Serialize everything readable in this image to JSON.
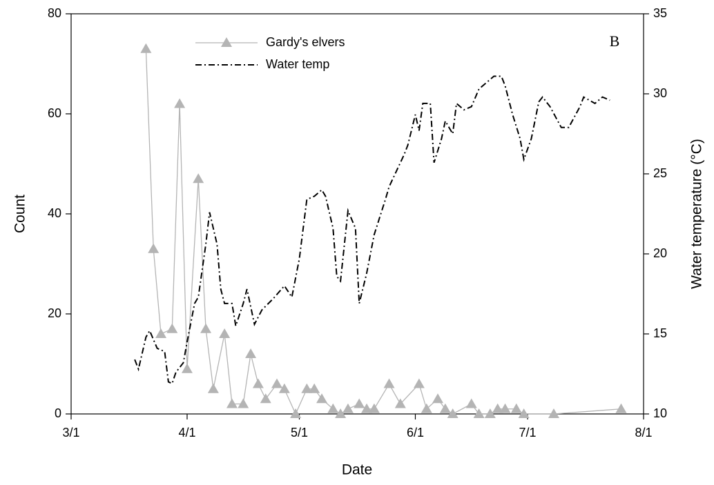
{
  "chart_data": {
    "type": "line",
    "annotations": [
      "B"
    ],
    "xlabel": "Date",
    "ylabel": "Count",
    "y2label": "Water temperature (°C)",
    "xlim": [
      "3/1",
      "8/1"
    ],
    "xticks": [
      "3/1",
      "4/1",
      "5/1",
      "6/1",
      "7/1",
      "8/1"
    ],
    "ylim": [
      0,
      80
    ],
    "yticks": [
      0,
      20,
      40,
      60,
      80
    ],
    "y2lim": [
      10,
      35
    ],
    "y2ticks": [
      10,
      15,
      20,
      25,
      30,
      35
    ],
    "legend": "top",
    "series": [
      {
        "name": "Gardy's elvers",
        "color": "#b4b4b4",
        "marker": "triangle",
        "line_style": "solid",
        "x": [
          "3/21",
          "3/23",
          "3/25",
          "3/28",
          "3/30",
          "4/1",
          "4/4",
          "4/6",
          "4/8",
          "4/11",
          "4/13",
          "4/16",
          "4/18",
          "4/20",
          "4/22",
          "4/25",
          "4/27",
          "4/30",
          "5/3",
          "5/5",
          "5/7",
          "5/10",
          "5/12",
          "5/14",
          "5/17",
          "5/19",
          "5/21",
          "5/25",
          "5/28",
          "6/2",
          "6/4",
          "6/7",
          "6/9",
          "6/11",
          "6/16",
          "6/18",
          "6/21",
          "6/23",
          "6/25",
          "6/28",
          "6/30",
          "7/8",
          "7/26"
        ],
        "values": [
          73,
          33,
          16,
          17,
          62,
          9,
          47,
          17,
          5,
          16,
          2,
          2,
          12,
          6,
          3,
          6,
          5,
          0,
          5,
          5,
          3,
          1,
          0,
          1,
          2,
          1,
          1,
          6,
          2,
          6,
          1,
          3,
          1,
          0,
          2,
          0,
          0,
          1,
          1,
          1,
          0,
          0,
          1
        ]
      },
      {
        "name": "Water temp",
        "color": "#000000",
        "axis": "y2",
        "line_style": "dashdot",
        "x": [
          "3/18",
          "3/19",
          "3/21",
          "3/22",
          "3/24",
          "3/26",
          "3/27",
          "3/28",
          "3/29",
          "3/31",
          "4/1",
          "4/3",
          "4/4",
          "4/6",
          "4/7",
          "4/9",
          "4/10",
          "4/11",
          "4/13",
          "4/14",
          "4/16",
          "4/17",
          "4/19",
          "4/21",
          "4/24",
          "4/27",
          "4/29",
          "5/1",
          "5/3",
          "5/5",
          "5/7",
          "5/8",
          "5/10",
          "5/11",
          "5/12",
          "5/14",
          "5/16",
          "5/17",
          "5/19",
          "5/21",
          "5/24",
          "5/25",
          "5/28",
          "5/29",
          "5/30",
          "6/1",
          "6/2",
          "6/3",
          "6/5",
          "6/6",
          "6/8",
          "6/9",
          "6/11",
          "6/12",
          "6/14",
          "6/16",
          "6/18",
          "6/20",
          "6/22",
          "6/24",
          "6/25",
          "6/27",
          "6/29",
          "6/30",
          "7/2",
          "7/4",
          "7/5",
          "7/7",
          "7/10",
          "7/12",
          "7/15",
          "7/16",
          "7/19",
          "7/21",
          "7/23"
        ],
        "values": [
          13.4,
          12.8,
          14.8,
          15.2,
          14.1,
          13.9,
          12,
          11.9,
          12.6,
          13.2,
          14.5,
          16.9,
          17.3,
          20.6,
          22.6,
          20.6,
          17.8,
          16.9,
          16.9,
          15.5,
          16.9,
          17.8,
          15.6,
          16.5,
          17.2,
          18,
          17.3,
          19.7,
          23.4,
          23.6,
          24,
          23.6,
          21.6,
          18.6,
          18.3,
          22.7,
          21.6,
          16.9,
          18.8,
          21.2,
          23.4,
          24.2,
          25.7,
          26.2,
          26.8,
          28.7,
          27.7,
          29.4,
          29.4,
          25.7,
          27.2,
          28.3,
          27.5,
          29.4,
          29,
          29.2,
          30.3,
          30.7,
          31.1,
          31.1,
          30.5,
          28.7,
          27.2,
          25.9,
          27.2,
          29.5,
          29.8,
          29.2,
          27.9,
          27.9,
          29.2,
          29.8,
          29.4,
          29.8,
          29.6
        ]
      }
    ]
  }
}
